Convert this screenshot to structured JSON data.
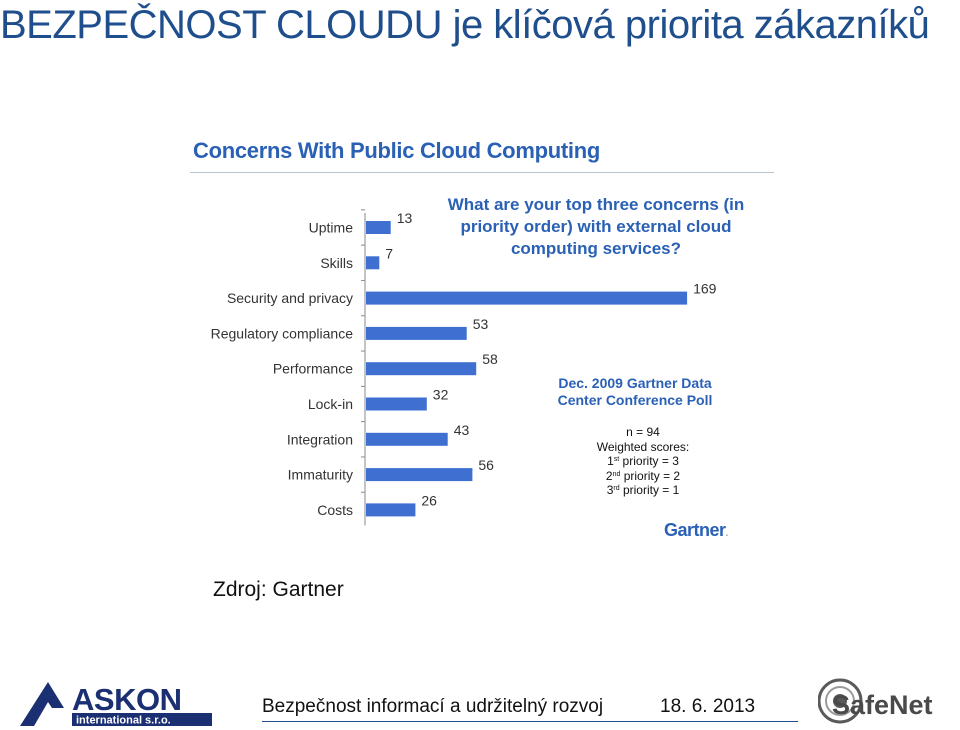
{
  "slide_title": "BEZPEČNOST CLOUDU je klíčová priorita zákazníků",
  "chart_data": {
    "type": "bar",
    "orientation": "horizontal",
    "title": "Concerns With Public Cloud Computing",
    "question": "What are your top three concerns (in priority order) with external cloud computing services?",
    "categories": [
      "Uptime",
      "Skills",
      "Security and privacy",
      "Regulatory compliance",
      "Performance",
      "Lock-in",
      "Integration",
      "Immaturity",
      "Costs"
    ],
    "values": [
      13,
      7,
      169,
      53,
      58,
      32,
      43,
      56,
      26
    ],
    "bar_color": "#3f6fd0",
    "grid": false
  },
  "poll": {
    "title_line1": "Dec. 2009 Gartner Data",
    "title_line2": "Center Conference Poll",
    "n": "n = 94",
    "weighted": "Weighted scores:",
    "p1_ord": "1",
    "p1_sup": "st",
    "p1_rest": " priority = 3",
    "p2_ord": "2",
    "p2_sup": "nd",
    "p2_rest": " priority = 2",
    "p3_ord": "3",
    "p3_sup": "rd",
    "p3_rest": " priority = 1"
  },
  "gartner_logo_text": "Gartner",
  "source": "Zdroj: Gartner",
  "footer": {
    "text": "Bezpečnost informací a udržitelný rozvoj",
    "date": "18. 6. 2013",
    "left_logo_top": "ASKON",
    "left_logo_bottom": "international s.r.o.",
    "right_logo": "SafeNet"
  },
  "colors": {
    "title": "#1f4e8c",
    "chart_blue": "#2a61b5",
    "askon_navy": "#1b2f73"
  }
}
